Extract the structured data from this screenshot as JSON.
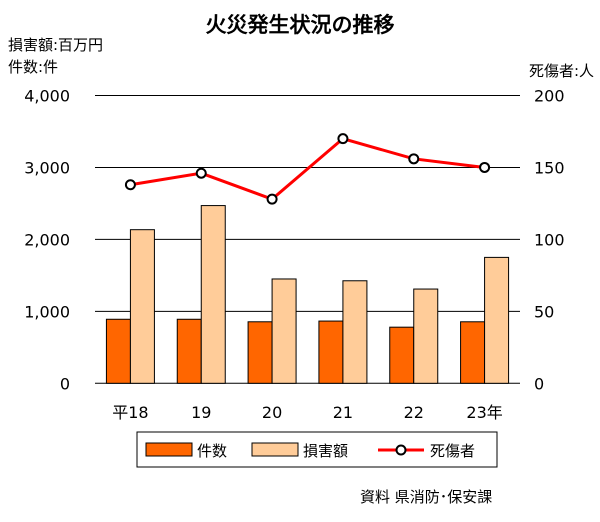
{
  "chart_data": {
    "type": "bar+line",
    "title": "火災発生状況の推移",
    "left_axis_label_1": "損害額:百万円",
    "left_axis_label_2": "件数:件",
    "right_axis_label": "死傷者:人",
    "categories": [
      "平18",
      "19",
      "20",
      "21",
      "22",
      "23年"
    ],
    "left_ticks": [
      "0",
      "1,000",
      "2,000",
      "3,000",
      "4,000"
    ],
    "right_ticks": [
      "0",
      "50",
      "100",
      "150",
      "200"
    ],
    "ylim_left": [
      0,
      4000
    ],
    "ylim_right": [
      0,
      200
    ],
    "grid": true,
    "series": [
      {
        "name": "件数",
        "type": "bar",
        "axis": "left",
        "color": "#FF6600",
        "values": [
          890,
          890,
          855,
          865,
          780,
          855
        ]
      },
      {
        "name": "損害額",
        "type": "bar",
        "axis": "left",
        "color": "#FFCC99",
        "values": [
          2135,
          2470,
          1450,
          1425,
          1310,
          1750
        ]
      },
      {
        "name": "死傷者",
        "type": "line",
        "axis": "right",
        "color": "#FF0000",
        "values": [
          138,
          146,
          128,
          170,
          156,
          150
        ]
      }
    ],
    "legend_position": "bottom",
    "source": "資料 県消防･保安課"
  }
}
